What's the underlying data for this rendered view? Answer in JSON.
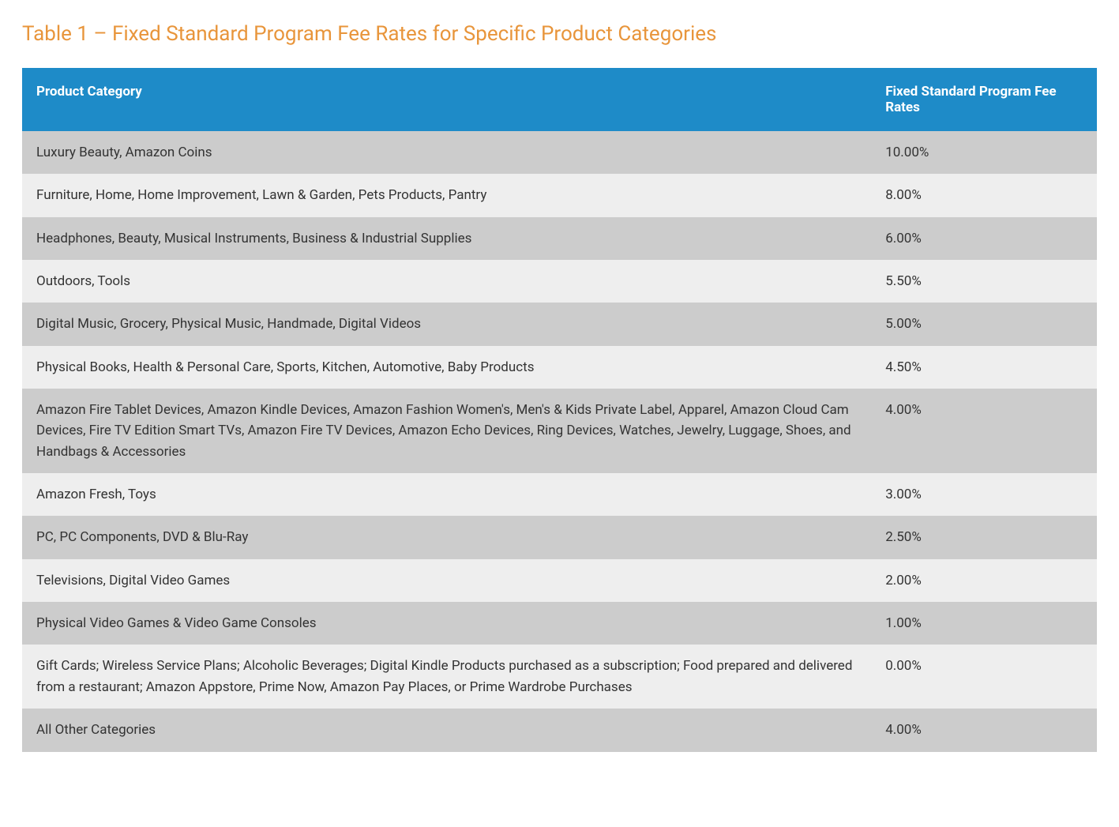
{
  "title": "Table 1 – Fixed Standard Program Fee Rates for Specific Product Categories",
  "title_color": "#e8953b",
  "header_bg": "#1e8bc8",
  "header_text_color": "#ffffff",
  "row_bg_odd": "#cccccc",
  "row_bg_even": "#eeeeee",
  "row_text_color": "#333333",
  "columns": [
    {
      "label": "Product Category"
    },
    {
      "label": "Fixed Standard Program Fee Rates"
    }
  ],
  "rows": [
    {
      "category": "Luxury Beauty, Amazon Coins",
      "rate": "10.00%"
    },
    {
      "category": "Furniture, Home, Home Improvement, Lawn & Garden, Pets Products, Pantry",
      "rate": "8.00%"
    },
    {
      "category": "Headphones, Beauty, Musical Instruments, Business & Industrial Supplies",
      "rate": "6.00%"
    },
    {
      "category": "Outdoors, Tools",
      "rate": "5.50%"
    },
    {
      "category": "Digital Music, Grocery, Physical Music, Handmade, Digital Videos",
      "rate": "5.00%"
    },
    {
      "category": "Physical Books, Health & Personal Care, Sports, Kitchen, Automotive, Baby Products",
      "rate": "4.50%"
    },
    {
      "category": "Amazon Fire Tablet Devices, Amazon Kindle Devices, Amazon Fashion Women's, Men's & Kids Private Label, Apparel, Amazon Cloud Cam Devices, Fire TV Edition Smart TVs, Amazon Fire TV Devices, Amazon Echo Devices, Ring Devices, Watches, Jewelry, Luggage, Shoes, and Handbags & Accessories",
      "rate": "4.00%"
    },
    {
      "category": "Amazon Fresh, Toys",
      "rate": "3.00%"
    },
    {
      "category": "PC, PC Components, DVD & Blu-Ray",
      "rate": "2.50%"
    },
    {
      "category": "Televisions, Digital Video Games",
      "rate": "2.00%"
    },
    {
      "category": "Physical Video Games & Video Game Consoles",
      "rate": "1.00%"
    },
    {
      "category": "Gift Cards; Wireless Service Plans; Alcoholic Beverages; Digital Kindle Products purchased as a subscription; Food prepared and delivered from a restaurant; Amazon Appstore, Prime Now, Amazon Pay Places, or Prime Wardrobe Purchases",
      "rate": "0.00%"
    },
    {
      "category": "All Other Categories",
      "rate": "4.00%"
    }
  ]
}
